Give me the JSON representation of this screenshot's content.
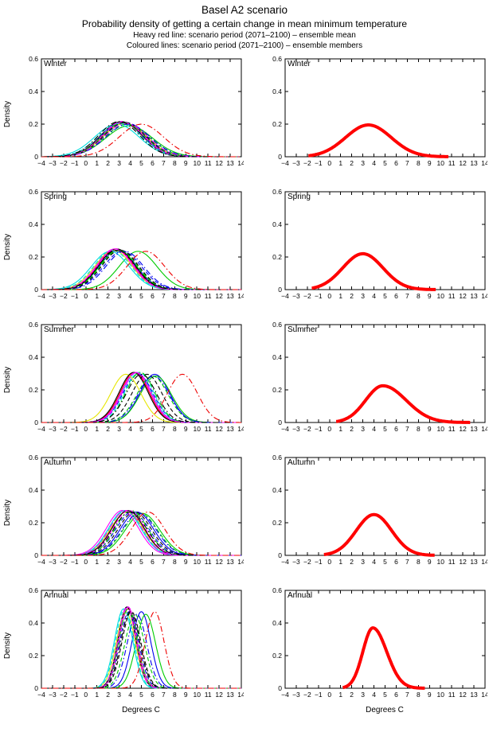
{
  "header": {
    "title": "Basel A2 scenario",
    "subtitle": "Probability density of getting a certain change in mean minimum temperature",
    "note_mean": "Heavy red line: scenario period (2071–2100) – ensemble mean",
    "note_members": "Coloured lines: scenario period (2071–2100) – ensemble members"
  },
  "chart_data": {
    "type": "line",
    "curve_model": "gaussian_pdf",
    "x_axis": {
      "label": "Degrees C",
      "min": -4,
      "max": 14,
      "tick_step": 1
    },
    "y_axis": {
      "label": "Density",
      "min": 0,
      "max": 0.6,
      "ticks": [
        0,
        0.2,
        0.4,
        0.6
      ]
    },
    "ensemble_mean_style": {
      "color": "#ff0000",
      "width": 4,
      "dash": "solid"
    },
    "member_width": 1.1,
    "member_styles": [
      {
        "name": "member-blue-solid",
        "color": "#0000ee",
        "dash": "solid"
      },
      {
        "name": "member-green-solid",
        "color": "#00cc00",
        "dash": "solid"
      },
      {
        "name": "member-red-solid",
        "color": "#ee0000",
        "dash": "solid"
      },
      {
        "name": "member-cyan-solid",
        "color": "#00dddd",
        "dash": "solid"
      },
      {
        "name": "member-magenta-solid",
        "color": "#ff00ff",
        "dash": "solid"
      },
      {
        "name": "member-yellow-solid",
        "color": "#e6e600",
        "dash": "solid"
      },
      {
        "name": "member-black-solid",
        "color": "#000000",
        "dash": "solid"
      },
      {
        "name": "member-blue-dashed",
        "color": "#0000ee",
        "dash": "dashed"
      },
      {
        "name": "member-green-dashed",
        "color": "#00cc00",
        "dash": "dashed"
      },
      {
        "name": "member-cyan-dashed",
        "color": "#00dddd",
        "dash": "dashed"
      },
      {
        "name": "member-magenta-dashed",
        "color": "#ff00ff",
        "dash": "dashed"
      },
      {
        "name": "member-black-dashed",
        "color": "#000000",
        "dash": "dashed"
      },
      {
        "name": "member-blue-dashdot",
        "color": "#0000ee",
        "dash": "dashdot"
      },
      {
        "name": "member-green-dashdot",
        "color": "#00cc00",
        "dash": "dashdot"
      },
      {
        "name": "member-magenta-dashdot",
        "color": "#ff00ff",
        "dash": "dashdot"
      },
      {
        "name": "member-black-dashdot",
        "color": "#000000",
        "dash": "dashdot"
      },
      {
        "name": "member-red-dashdot",
        "color": "#ee0000",
        "dash": "dashdot"
      }
    ],
    "rows": [
      {
        "season": "Winter",
        "member_means": [
          3.3,
          3.9,
          3.4,
          2.8,
          3.4,
          3.5,
          3.2,
          3.6,
          3.7,
          3.1,
          3.3,
          3.5,
          3.8,
          3.4,
          3.6,
          3.0,
          5.0
        ],
        "member_sds": [
          1.9,
          2.1,
          1.9,
          2.0,
          1.9,
          1.95,
          1.85,
          1.9,
          2.0,
          1.95,
          1.85,
          1.9,
          2.0,
          1.9,
          1.95,
          1.85,
          2.0
        ],
        "ensemble_mean": {
          "mean": 3.5,
          "sd_left": 2.05,
          "sd_right": 2.05,
          "peak": 0.195,
          "x_range": [
            -1.9,
            10.7
          ]
        }
      },
      {
        "season": "Spring",
        "member_means": [
          2.9,
          4.7,
          2.7,
          2.2,
          2.6,
          2.5,
          2.8,
          3.3,
          3.0,
          2.4,
          2.7,
          3.1,
          3.5,
          2.9,
          2.6,
          2.8,
          5.4
        ],
        "member_sds": [
          1.65,
          1.7,
          1.6,
          1.7,
          1.6,
          1.65,
          1.6,
          1.7,
          1.65,
          1.65,
          1.6,
          1.65,
          1.7,
          1.65,
          1.6,
          1.65,
          1.7
        ],
        "ensemble_mean": {
          "mean": 3.0,
          "sd_left": 1.81,
          "sd_right": 1.81,
          "peak": 0.22,
          "x_range": [
            -1.6,
            9.6
          ]
        }
      },
      {
        "season": "Summer",
        "member_means": [
          6.2,
          6.3,
          4.4,
          4.6,
          4.5,
          3.6,
          4.3,
          4.7,
          6.0,
          4.8,
          4.5,
          5.5,
          6.1,
          4.9,
          4.6,
          5.0,
          8.7
        ],
        "member_sds": [
          1.35,
          1.4,
          1.3,
          1.3,
          1.3,
          1.35,
          1.3,
          1.35,
          1.4,
          1.3,
          1.3,
          1.35,
          1.4,
          1.3,
          1.3,
          1.35,
          1.35
        ],
        "ensemble_mean": {
          "mean": 4.8,
          "sd_left": 1.55,
          "sd_right": 2.1,
          "peak": 0.225,
          "x_range": [
            0.6,
            12.7
          ]
        }
      },
      {
        "season": "Autumn",
        "member_means": [
          4.6,
          5.1,
          3.8,
          3.5,
          3.3,
          3.7,
          3.8,
          4.2,
          4.9,
          3.6,
          3.9,
          4.4,
          4.8,
          4.1,
          3.6,
          4.0,
          5.6
        ],
        "member_sds": [
          1.5,
          1.55,
          1.45,
          1.45,
          1.45,
          1.5,
          1.45,
          1.5,
          1.55,
          1.45,
          1.45,
          1.5,
          1.55,
          1.45,
          1.45,
          1.5,
          1.5
        ],
        "ensemble_mean": {
          "mean": 4.0,
          "sd_left": 1.6,
          "sd_right": 1.6,
          "peak": 0.25,
          "x_range": [
            -0.5,
            9.5
          ]
        }
      },
      {
        "season": "Annual",
        "member_means": [
          5.0,
          5.4,
          3.8,
          3.4,
          3.8,
          3.6,
          3.7,
          3.9,
          4.4,
          3.5,
          3.8,
          4.1,
          4.6,
          3.8,
          3.7,
          4.0,
          6.2
        ],
        "member_sds": [
          0.85,
          0.88,
          0.82,
          0.82,
          0.8,
          0.85,
          0.8,
          0.85,
          0.88,
          0.82,
          0.8,
          0.85,
          0.88,
          0.82,
          0.8,
          0.85,
          0.85
        ],
        "ensemble_mean": {
          "mean": 3.9,
          "sd_left": 0.9,
          "sd_right": 1.25,
          "peak": 0.37,
          "x_range": [
            1.2,
            8.6
          ]
        }
      }
    ]
  }
}
